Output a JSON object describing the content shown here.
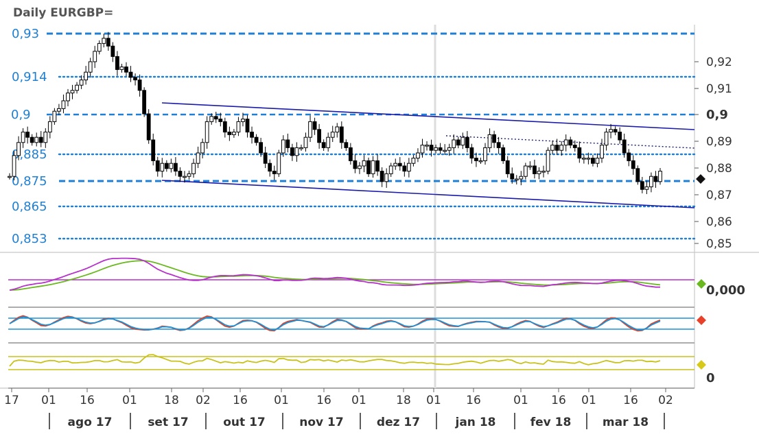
{
  "title": "Daily EURGBP=",
  "colors": {
    "level_line": "#1e7fd4",
    "candle": "#000000",
    "channel": "#1a1aa8",
    "ind1_a": "#6ab820",
    "ind1_b": "#b531c9",
    "ind2_a": "#d8432a",
    "ind2_b": "#1e90d4",
    "ind3": "#c8c21a"
  },
  "chart_data": {
    "type": "candlestick",
    "title": "Daily EURGBP=",
    "price_axis_ticks": [
      "0,92",
      "0,91",
      "0,9",
      "0,89",
      "0,88",
      "0,87",
      "0,86",
      "0,85"
    ],
    "price_axis_bold": "0,9",
    "ylim": [
      0.849,
      0.931
    ],
    "levels": [
      {
        "label": "0,93",
        "value": 0.93,
        "style": "dashed-bold"
      },
      {
        "label": "0,914",
        "value": 0.914,
        "style": "dotted"
      },
      {
        "label": "0,9",
        "value": 0.9,
        "style": "dashed"
      },
      {
        "label": "0,885",
        "value": 0.885,
        "style": "dotted"
      },
      {
        "label": "0,875",
        "value": 0.875,
        "style": "dashed-bold"
      },
      {
        "label": "0,865",
        "value": 0.865,
        "style": "dotted"
      },
      {
        "label": "0,853",
        "value": 0.853,
        "style": "dotted"
      }
    ],
    "x_ticks": [
      "17",
      "01",
      "16",
      "01",
      "18",
      "02",
      "16",
      "01",
      "16",
      "01",
      "18",
      "01",
      "16",
      "01",
      "16",
      "01",
      "16",
      "02"
    ],
    "months": [
      "ago 17",
      "set 17",
      "out 17",
      "nov 17",
      "dez 17",
      "jan 18",
      "fev 18",
      "mar 18"
    ],
    "closes": [
      0.876,
      0.884,
      0.889,
      0.893,
      0.891,
      0.889,
      0.891,
      0.889,
      0.893,
      0.897,
      0.901,
      0.902,
      0.905,
      0.908,
      0.909,
      0.911,
      0.913,
      0.916,
      0.92,
      0.924,
      0.927,
      0.929,
      0.926,
      0.922,
      0.917,
      0.918,
      0.916,
      0.914,
      0.913,
      0.909,
      0.9,
      0.89,
      0.882,
      0.878,
      0.881,
      0.879,
      0.881,
      0.878,
      0.876,
      0.876,
      0.877,
      0.881,
      0.885,
      0.889,
      0.897,
      0.899,
      0.898,
      0.897,
      0.893,
      0.892,
      0.893,
      0.897,
      0.898,
      0.893,
      0.891,
      0.889,
      0.885,
      0.881,
      0.878,
      0.877,
      0.885,
      0.89,
      0.887,
      0.884,
      0.887,
      0.887,
      0.891,
      0.897,
      0.894,
      0.889,
      0.887,
      0.891,
      0.893,
      0.895,
      0.889,
      0.887,
      0.882,
      0.879,
      0.88,
      0.882,
      0.877,
      0.882,
      0.878,
      0.874,
      0.877,
      0.88,
      0.881,
      0.88,
      0.878,
      0.881,
      0.883,
      0.885,
      0.888,
      0.888,
      0.886,
      0.887,
      0.886,
      0.886,
      0.887,
      0.89,
      0.888,
      0.891,
      0.887,
      0.883,
      0.882,
      0.882,
      0.887,
      0.892,
      0.889,
      0.887,
      0.882,
      0.877,
      0.875,
      0.875,
      0.876,
      0.88,
      0.88,
      0.877,
      0.878,
      0.878,
      0.886,
      0.888,
      0.886,
      0.888,
      0.89,
      0.888,
      0.887,
      0.883,
      0.883,
      0.883,
      0.881,
      0.883,
      0.888,
      0.893,
      0.894,
      0.893,
      0.89,
      0.885,
      0.882,
      0.879,
      0.874,
      0.871,
      0.872,
      0.876,
      0.874,
      0.878
    ]
  },
  "indicators": {
    "ind1_label": "0,000",
    "ind3_label": "0"
  }
}
